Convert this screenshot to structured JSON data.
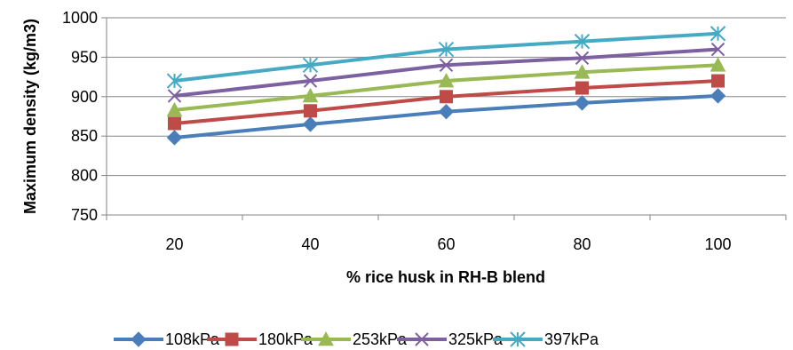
{
  "chart_data": {
    "type": "line",
    "title": "",
    "xlabel": "% rice husk in RH-B blend",
    "ylabel": "Maximum density (kg/m3)",
    "categories": [
      "20",
      "40",
      "60",
      "80",
      "100"
    ],
    "ylim": [
      750,
      1000
    ],
    "yticks": [
      750,
      800,
      850,
      900,
      950,
      1000
    ],
    "grid": "horizontal",
    "legend_position": "bottom",
    "series": [
      {
        "name": "108kPa",
        "values": [
          848,
          865,
          881,
          892,
          901
        ],
        "color": "#4A7EBB",
        "marker": "diamond"
      },
      {
        "name": "180kPa",
        "values": [
          866,
          882,
          900,
          911,
          920
        ],
        "color": "#BE4B48",
        "marker": "square"
      },
      {
        "name": "253kPa",
        "values": [
          883,
          901,
          920,
          931,
          940
        ],
        "color": "#98B954",
        "marker": "triangle"
      },
      {
        "name": "325kPa",
        "values": [
          901,
          920,
          940,
          949,
          960
        ],
        "color": "#7D60A0",
        "marker": "x"
      },
      {
        "name": "397kPa",
        "values": [
          920,
          940,
          960,
          970,
          980
        ],
        "color": "#46AAC5",
        "marker": "asterisk"
      }
    ]
  }
}
